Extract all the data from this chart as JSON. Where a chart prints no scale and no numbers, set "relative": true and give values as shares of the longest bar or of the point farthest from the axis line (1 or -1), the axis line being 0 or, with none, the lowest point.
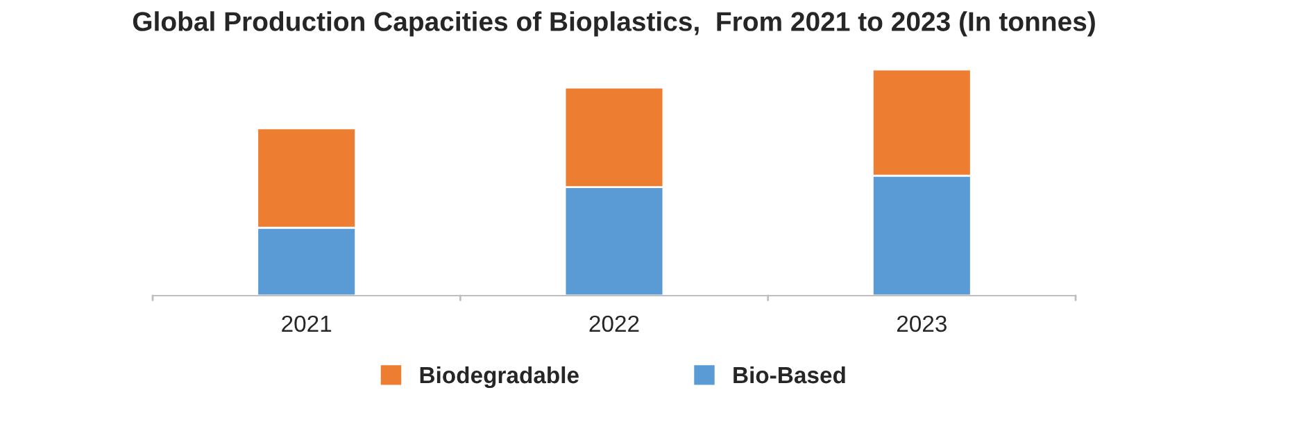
{
  "chart_data": {
    "type": "bar",
    "title": "Global Production Capacities of Bioplastics,  From 2021 to 2023 (In tonnes)",
    "categories": [
      "2021",
      "2022",
      "2023"
    ],
    "stacked": true,
    "relative": true,
    "legend": "bottom",
    "grid": false,
    "series": [
      {
        "name": "Bio-Based",
        "color": "#5b9bd5",
        "values": [
          0.3,
          0.48,
          0.53
        ]
      },
      {
        "name": "Biodegradable",
        "color": "#ed7d31",
        "values": [
          0.44,
          0.44,
          0.47
        ]
      }
    ]
  }
}
